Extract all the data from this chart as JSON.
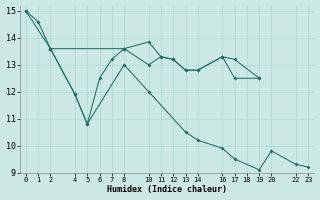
{
  "xlabel": "Humidex (Indice chaleur)",
  "bg_color": "#cce8e4",
  "grid_color": "#b0d8d4",
  "line_color": "#1a7068",
  "xlim": [
    -0.5,
    23.5
  ],
  "ylim": [
    9,
    15.2
  ],
  "yticks": [
    9,
    10,
    11,
    12,
    13,
    14,
    15
  ],
  "xtick_positions": [
    0,
    1,
    2,
    4,
    5,
    6,
    7,
    8,
    10,
    11,
    12,
    13,
    14,
    16,
    17,
    18,
    19,
    20,
    22,
    23
  ],
  "xtick_labels": [
    "0",
    "1",
    "2",
    "4",
    "5",
    "6",
    "7",
    "8",
    "10",
    "11",
    "12",
    "13",
    "14",
    "16",
    "17",
    "18",
    "19",
    "20",
    "22",
    "23"
  ],
  "line1_x": [
    0,
    1,
    2,
    8,
    10,
    11,
    12,
    13,
    14,
    16,
    17,
    19
  ],
  "line1_y": [
    15.0,
    14.6,
    13.6,
    13.6,
    13.85,
    13.3,
    13.2,
    12.8,
    12.8,
    13.3,
    13.2,
    12.5
  ],
  "line2_x": [
    2,
    4,
    5,
    6,
    7,
    8,
    10,
    11,
    12,
    13,
    14,
    16,
    17,
    19
  ],
  "line2_y": [
    13.6,
    11.9,
    10.8,
    12.5,
    13.2,
    13.6,
    13.0,
    13.3,
    13.2,
    12.8,
    12.8,
    13.3,
    12.5,
    12.5
  ],
  "line3_x": [
    0,
    2,
    4,
    5,
    8,
    10,
    13,
    14,
    16,
    17,
    19,
    20,
    22,
    23
  ],
  "line3_y": [
    15.0,
    13.6,
    11.9,
    10.8,
    13.0,
    12.0,
    10.5,
    10.2,
    9.9,
    9.5,
    9.1,
    9.8,
    9.3,
    9.2
  ]
}
